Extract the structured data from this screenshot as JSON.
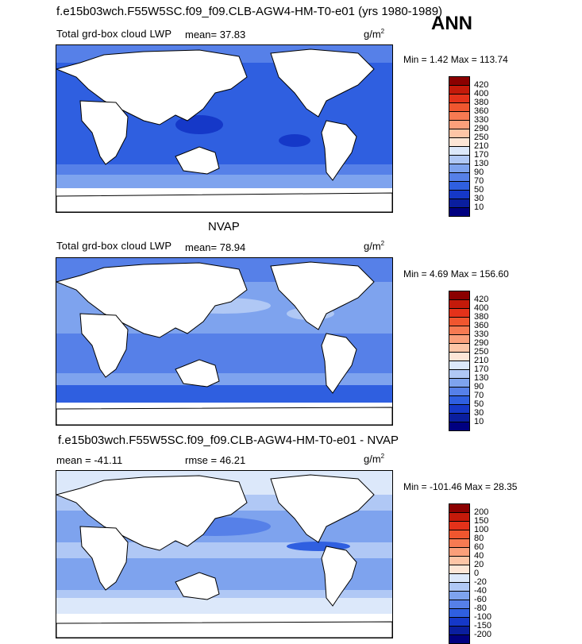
{
  "main_title": "f.e15b03wch.F55W5SC.f09_f09.CLB-AGW4-HM-T0-e01 (yrs 1980-1989)",
  "season": "ANN",
  "panels": [
    {
      "variable": "Total grd-box cloud LWP",
      "mean_text": "mean=   37.83",
      "units_base": "g/m",
      "units_exp": "2",
      "minmax": "Min =    1.42 Max = 113.74",
      "colorbar_labels": [
        "420",
        "400",
        "380",
        "360",
        "330",
        "290",
        "250",
        "210",
        "170",
        "130",
        "90",
        "70",
        "50",
        "30",
        "10"
      ]
    },
    {
      "heading": "NVAP",
      "variable": "Total grd-box cloud LWP",
      "mean_text": "mean=   78.94",
      "units_base": "g/m",
      "units_exp": "2",
      "minmax": "Min =    4.69 Max = 156.60",
      "colorbar_labels": [
        "420",
        "400",
        "380",
        "360",
        "330",
        "290",
        "250",
        "210",
        "170",
        "130",
        "90",
        "70",
        "50",
        "30",
        "10"
      ]
    },
    {
      "heading": "f.e15b03wch.F55W5SC.f09_f09.CLB-AGW4-HM-T0-e01 - NVAP",
      "mean_text": "mean = -41.11",
      "rmse_text": "rmse =  46.21",
      "units_base": "g/m",
      "units_exp": "2",
      "minmax": "Min = -101.46 Max =  28.35",
      "colorbar_labels": [
        "200",
        "150",
        "100",
        "80",
        "60",
        "40",
        "20",
        "0",
        "-20",
        "-40",
        "-60",
        "-80",
        "-100",
        "-150",
        "-200"
      ]
    }
  ],
  "colors": {
    "abs_scale": [
      "#8b0000",
      "#c41a0a",
      "#e4321a",
      "#f0562f",
      "#f77a52",
      "#fb9f7a",
      "#fdc5a6",
      "#fde6d6",
      "#dce8fa",
      "#b0c8f5",
      "#7ea3ee",
      "#5680e8",
      "#2f5fe0",
      "#1538c8",
      "#0a1e9e",
      "#000080"
    ],
    "diff_scale": [
      "#8b0000",
      "#c41a0a",
      "#e4321a",
      "#f0562f",
      "#f77a52",
      "#fb9f7a",
      "#fdc5a6",
      "#fde6d6",
      "#dce8fa",
      "#b0c8f5",
      "#7ea3ee",
      "#5680e8",
      "#2f5fe0",
      "#1538c8",
      "#0a1e9e",
      "#000080"
    ],
    "land": "#ffffff"
  }
}
